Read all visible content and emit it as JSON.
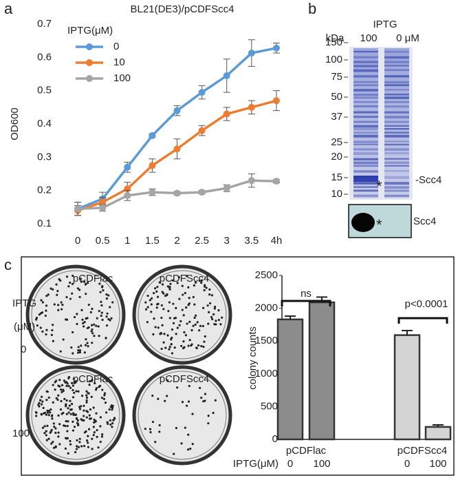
{
  "panel_labels": [
    "a",
    "b",
    "c"
  ],
  "chart_data": [
    {
      "type": "line",
      "title": "BL21(DE3)/pCDFScc4",
      "y_label": "OD600",
      "categories": [
        "0",
        "0.5",
        "1",
        "1.5",
        "2",
        "2.5",
        "3",
        "3.5",
        "4h"
      ],
      "legend_title": "IPTG(μM)",
      "series": [
        {
          "name": "0",
          "color": "#5b9bd5",
          "values": [
            0.145,
            0.175,
            0.27,
            0.365,
            0.44,
            0.495,
            0.545,
            0.613,
            0.628
          ],
          "errors": [
            0.02,
            0.02,
            0.015,
            0.005,
            0.015,
            0.02,
            0.05,
            0.04,
            0.015
          ]
        },
        {
          "name": "10",
          "color": "#ed7d31",
          "values": [
            0.14,
            0.165,
            0.205,
            0.275,
            0.325,
            0.38,
            0.43,
            0.45,
            0.47
          ],
          "errors": [
            0.015,
            0.015,
            0.02,
            0.02,
            0.03,
            0.015,
            0.02,
            0.02,
            0.03
          ]
        },
        {
          "name": "100",
          "color": "#a5a5a5",
          "values": [
            0.145,
            0.148,
            0.185,
            0.195,
            0.192,
            0.195,
            0.207,
            0.23,
            0.228
          ],
          "errors": [
            0.02,
            0.01,
            0.015,
            0.01,
            0.005,
            0.005,
            0.01,
            0.02,
            0.005
          ]
        }
      ],
      "ylim": [
        0.1,
        0.7
      ],
      "yticks": [
        0.1,
        0.2,
        0.3,
        0.4,
        0.5,
        0.6,
        0.7
      ],
      "grid": false
    },
    {
      "type": "bar",
      "y_label": "colony counts",
      "categories": [
        "0",
        "100",
        "0",
        "100"
      ],
      "groups": [
        "pCDFlac",
        "pCDFScc4"
      ],
      "x_label": "IPTG(μM)",
      "values": [
        1830,
        2090,
        1590,
        190
      ],
      "errors": [
        50,
        80,
        70,
        30
      ],
      "colors": [
        "#8c8c8c",
        "#8c8c8c",
        "#d4d4d4",
        "#d4d4d4"
      ],
      "annotations": [
        "ns",
        "p<0.0001"
      ],
      "ylim": [
        0,
        2500
      ],
      "yticks": [
        0,
        500,
        1000,
        1500,
        2000,
        2500
      ],
      "grid": false
    }
  ],
  "gel": {
    "header": "IPTG",
    "unit": "kDa",
    "lanes": [
      "100",
      "0 μM"
    ],
    "markers": [
      "150",
      "100",
      "75",
      "50",
      "37",
      "25",
      "20",
      "15",
      "10"
    ],
    "band_label": "-Scc4",
    "blot_label": "Scc4",
    "asterisk": "*"
  },
  "plates": {
    "row_label": "IPTG",
    "row_unit": "(μM)",
    "rows": [
      "0",
      "100"
    ],
    "labels": [
      "pCDFlac",
      "pCDFScc4",
      "pCDFlac",
      "pCDFScc4"
    ]
  }
}
